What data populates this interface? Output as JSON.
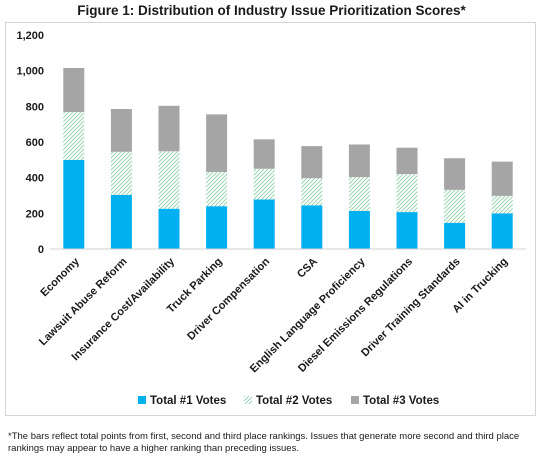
{
  "title": "Figure 1: Distribution of Industry Issue Prioritization Scores*",
  "footnote": "*The bars reflect total points from first, second and third place rankings.  Issues that generate more second and third place rankings may appear to have a higher ranking than preceding issues.",
  "chart_data": {
    "type": "bar",
    "stacked": true,
    "title": "Figure 1: Distribution of Industry Issue Prioritization Scores*",
    "xlabel": "",
    "ylabel": "",
    "ylim": [
      0,
      1200
    ],
    "y_ticks": [
      "0",
      "200",
      "400",
      "600",
      "800",
      "1,000",
      "1,200"
    ],
    "grid": false,
    "legend_position": "bottom",
    "categories": [
      "Economy",
      "Lawsuit Abuse Reform",
      "Insurance Cost/Availability",
      "Truck Parking",
      "Driver Compensation",
      "CSA",
      "English Language Proficiency",
      "Diesel Emissions Regulations",
      "Driver Training Standards",
      "AI in Trucking"
    ],
    "series": [
      {
        "name": "Total #1 Votes",
        "color": "#00b0f0",
        "pattern": "solid",
        "values": [
          500,
          303,
          226,
          240,
          278,
          245,
          213,
          207,
          147,
          200
        ]
      },
      {
        "name": "Total #2 Votes",
        "color": "#92d050",
        "pattern": "diagonal-hatch",
        "values": [
          268,
          242,
          322,
          192,
          172,
          152,
          190,
          213,
          185,
          98
        ]
      },
      {
        "name": "Total #3 Votes",
        "color": "#a5a5a5",
        "pattern": "solid",
        "values": [
          247,
          240,
          255,
          323,
          165,
          180,
          183,
          148,
          177,
          192
        ]
      }
    ]
  }
}
